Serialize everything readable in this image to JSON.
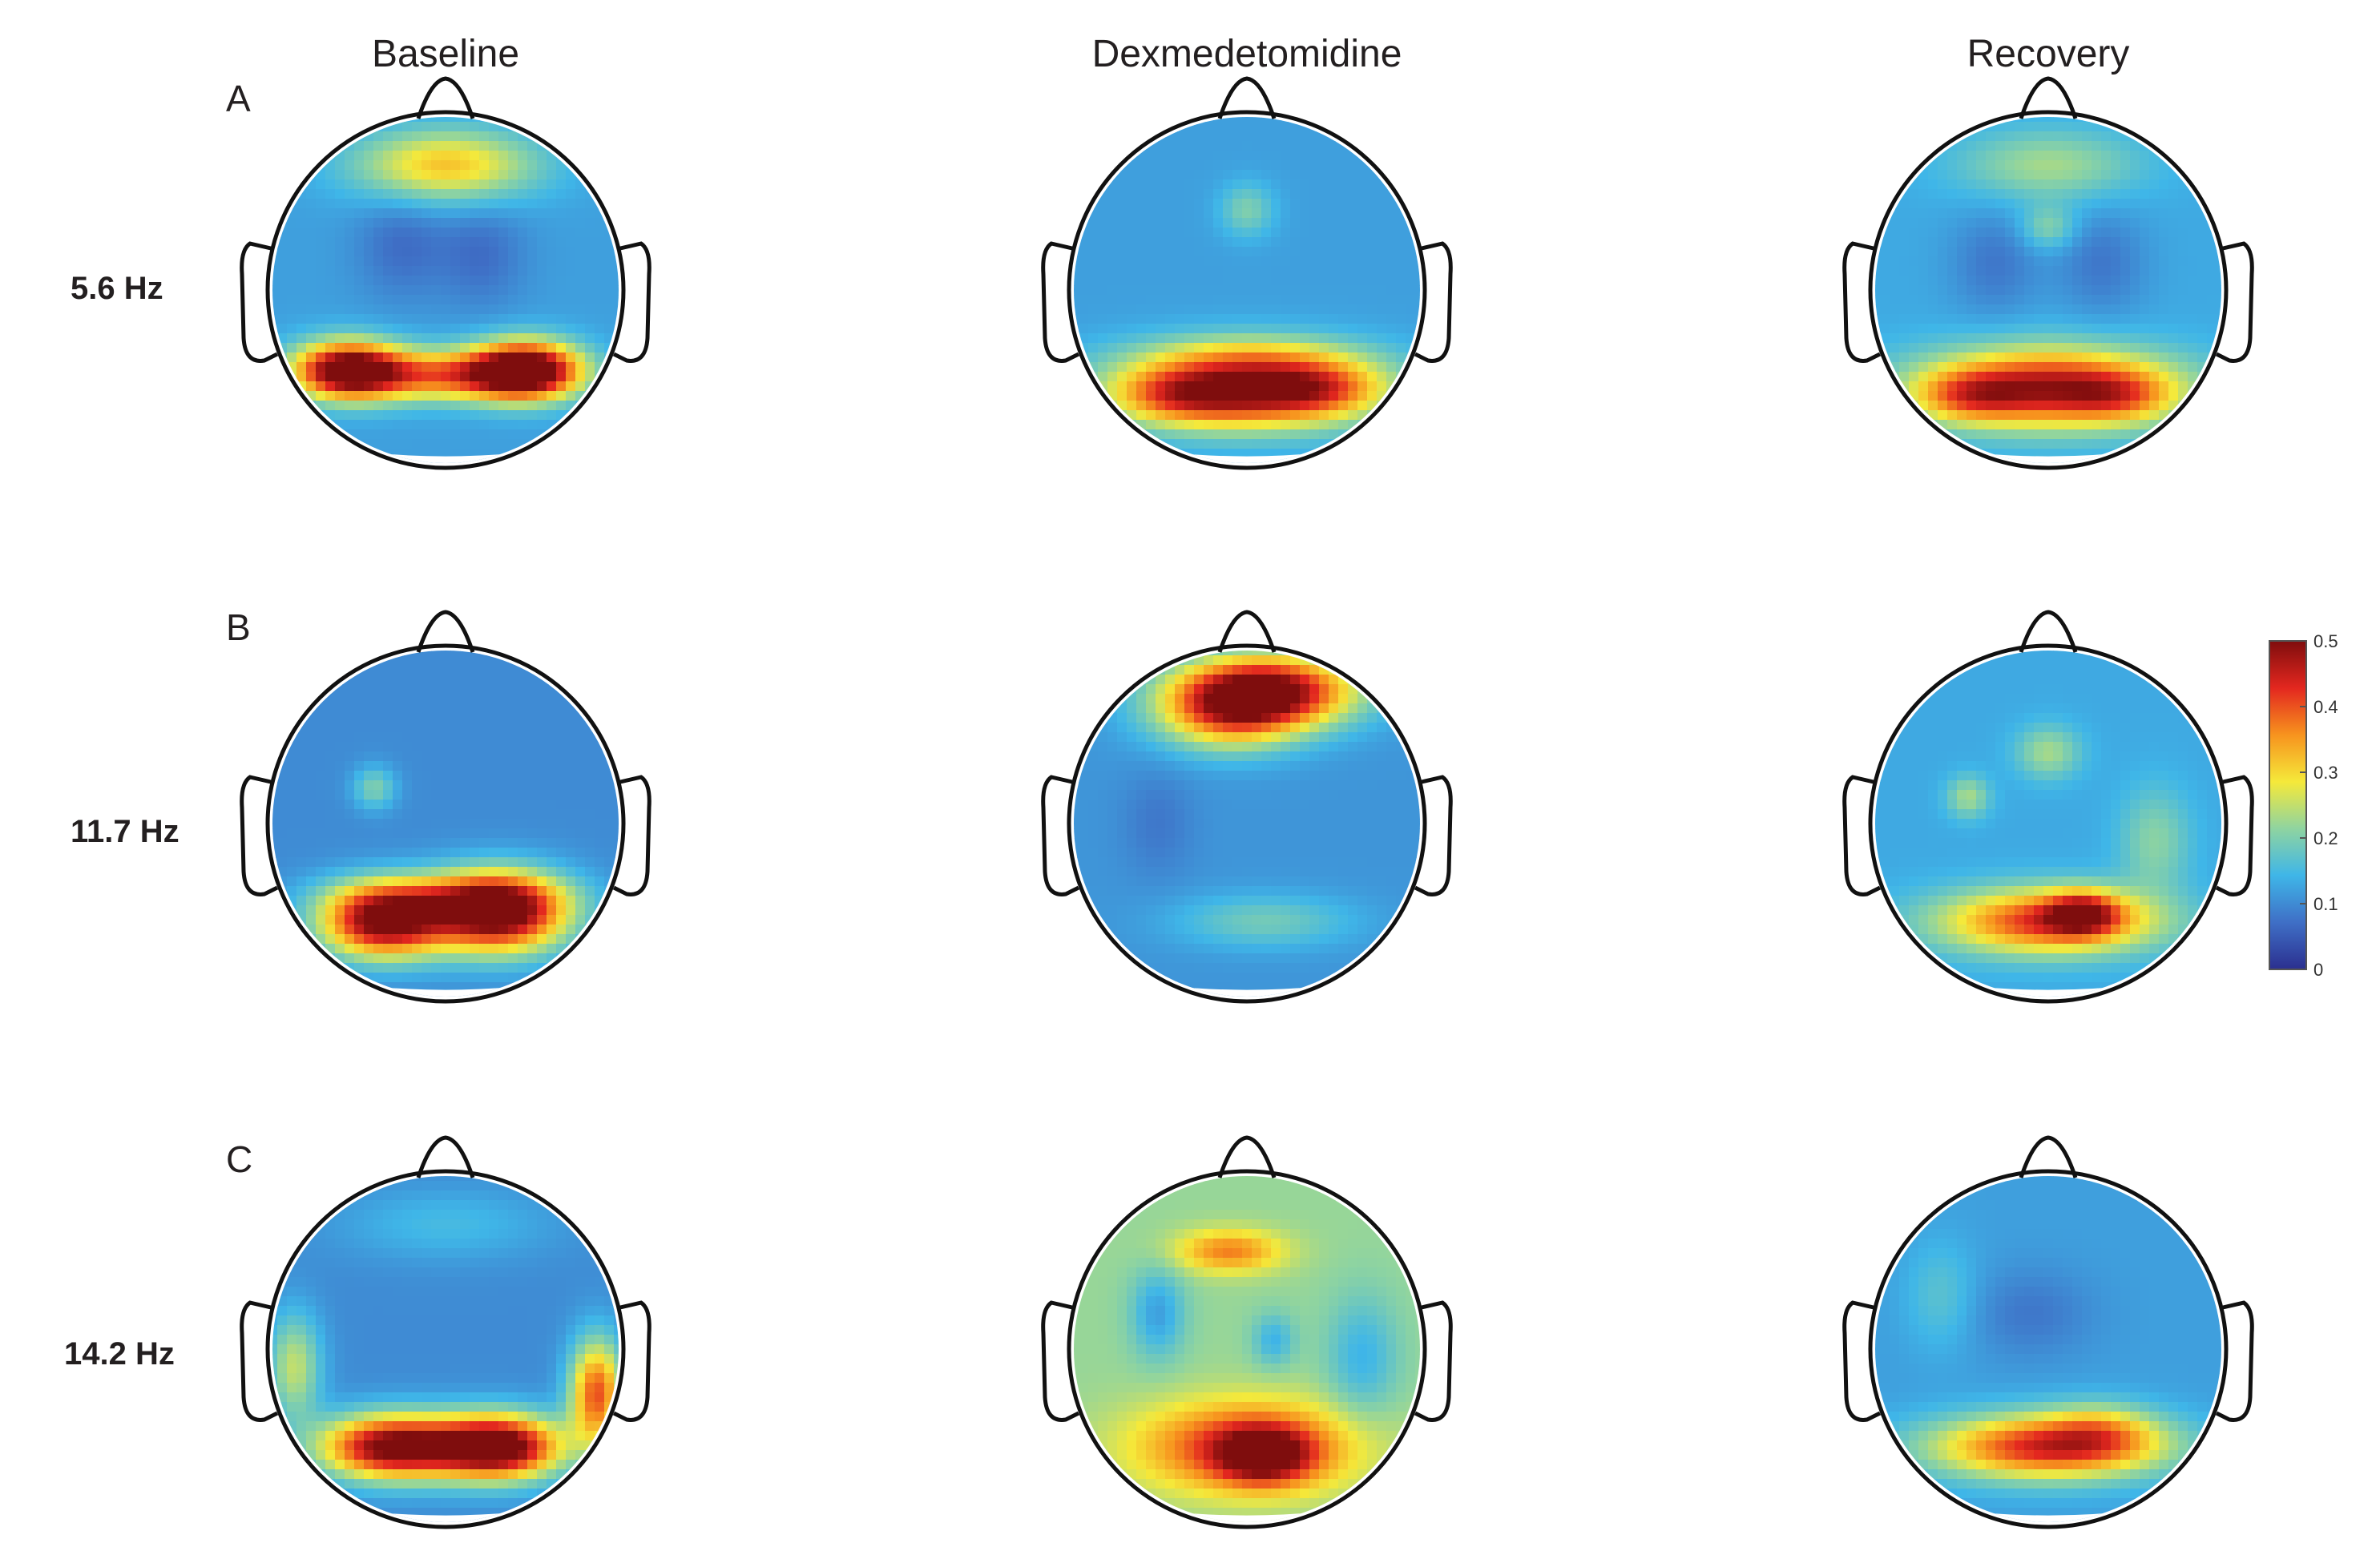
{
  "figure": {
    "columns": [
      "Baseline",
      "Dexmedetomidine",
      "Recovery"
    ],
    "rows": [
      {
        "letter": "A",
        "frequency": "5.6 Hz"
      },
      {
        "letter": "B",
        "frequency": "11.7 Hz"
      },
      {
        "letter": "C",
        "frequency": "14.2 Hz"
      }
    ],
    "colorbar": {
      "min": 0,
      "max": 0.5,
      "ticks": [
        "0",
        "0.1",
        "0.2",
        "0.3",
        "0.4",
        "0.5"
      ],
      "colormap": [
        "#2b2f8f",
        "#3f6fc6",
        "#3fb6e8",
        "#8fd4a0",
        "#f5e93a",
        "#f7931e",
        "#e3271f",
        "#7f0d0d"
      ]
    }
  },
  "maps": [
    [
      {
        "bg": 0.12,
        "blobs": [
          [
            -0.55,
            0.45,
            0.3,
            0.16,
            0.4
          ],
          [
            0.45,
            0.45,
            0.3,
            0.16,
            0.42
          ],
          [
            0,
            0.48,
            0.55,
            0.14,
            0.25
          ],
          [
            0,
            -0.7,
            0.5,
            0.2,
            0.2
          ],
          [
            -0.25,
            -0.25,
            0.25,
            0.3,
            -0.05
          ],
          [
            0.2,
            -0.2,
            0.25,
            0.3,
            -0.05
          ]
        ]
      },
      {
        "bg": 0.12,
        "blobs": [
          [
            0,
            0.55,
            0.7,
            0.22,
            0.38
          ],
          [
            -0.4,
            0.6,
            0.35,
            0.15,
            0.1
          ],
          [
            0.4,
            0.55,
            0.35,
            0.15,
            0.1
          ],
          [
            0,
            -0.45,
            0.15,
            0.15,
            0.08
          ],
          [
            0,
            0.35,
            0.6,
            0.1,
            0.05
          ]
        ]
      },
      {
        "bg": 0.13,
        "blobs": [
          [
            0,
            0.55,
            0.7,
            0.22,
            0.34
          ],
          [
            -0.45,
            0.6,
            0.3,
            0.14,
            0.12
          ],
          [
            0.4,
            0.6,
            0.3,
            0.14,
            0.1
          ],
          [
            0,
            -0.7,
            0.5,
            0.2,
            0.1
          ],
          [
            0,
            -0.35,
            0.15,
            0.12,
            0.08
          ],
          [
            -0.3,
            -0.15,
            0.25,
            0.3,
            -0.05
          ],
          [
            0.3,
            -0.15,
            0.25,
            0.3,
            -0.05
          ]
        ]
      }
    ],
    [
      {
        "bg": 0.1,
        "blobs": [
          [
            -0.35,
            0.55,
            0.35,
            0.2,
            0.42
          ],
          [
            0.3,
            0.5,
            0.38,
            0.22,
            0.45
          ],
          [
            0,
            0.4,
            0.6,
            0.12,
            0.1
          ],
          [
            -0.4,
            -0.2,
            0.12,
            0.12,
            0.1
          ]
        ]
      },
      {
        "bg": 0.11,
        "blobs": [
          [
            0.1,
            -0.75,
            0.5,
            0.2,
            0.4
          ],
          [
            -0.1,
            -0.6,
            0.4,
            0.2,
            0.2
          ],
          [
            0.1,
            0.55,
            0.5,
            0.15,
            0.08
          ],
          [
            -0.5,
            0.0,
            0.2,
            0.3,
            -0.03
          ]
        ]
      },
      {
        "bg": 0.13,
        "blobs": [
          [
            0.0,
            0.55,
            0.6,
            0.18,
            0.3
          ],
          [
            0.2,
            0.5,
            0.2,
            0.12,
            0.2
          ],
          [
            0.0,
            -0.4,
            0.18,
            0.15,
            0.1
          ],
          [
            -0.45,
            -0.15,
            0.12,
            0.12,
            0.1
          ],
          [
            0.6,
            0.1,
            0.2,
            0.3,
            0.08
          ]
        ]
      }
    ],
    [
      {
        "bg": 0.1,
        "blobs": [
          [
            -0.3,
            0.55,
            0.4,
            0.18,
            0.42
          ],
          [
            0.3,
            0.55,
            0.35,
            0.18,
            0.45
          ],
          [
            0.85,
            0.25,
            0.15,
            0.3,
            0.3
          ],
          [
            -0.85,
            0.1,
            0.15,
            0.3,
            0.15
          ],
          [
            0,
            -0.7,
            0.6,
            0.2,
            0.05
          ]
        ]
      },
      {
        "bg": 0.22,
        "blobs": [
          [
            0.0,
            0.55,
            0.6,
            0.25,
            0.22
          ],
          [
            0.1,
            0.6,
            0.25,
            0.15,
            0.2
          ],
          [
            -0.1,
            -0.55,
            0.3,
            0.12,
            0.15
          ],
          [
            -0.5,
            -0.2,
            0.15,
            0.25,
            -0.1
          ],
          [
            0.65,
            0.05,
            0.2,
            0.35,
            -0.08
          ],
          [
            0.15,
            -0.05,
            0.12,
            0.15,
            -0.08
          ]
        ]
      },
      {
        "bg": 0.12,
        "blobs": [
          [
            0.0,
            0.55,
            0.65,
            0.18,
            0.32
          ],
          [
            0.3,
            0.45,
            0.3,
            0.15,
            0.1
          ],
          [
            -0.1,
            -0.2,
            0.35,
            0.25,
            -0.04
          ],
          [
            -0.6,
            -0.3,
            0.2,
            0.3,
            0.05
          ]
        ]
      }
    ]
  ]
}
